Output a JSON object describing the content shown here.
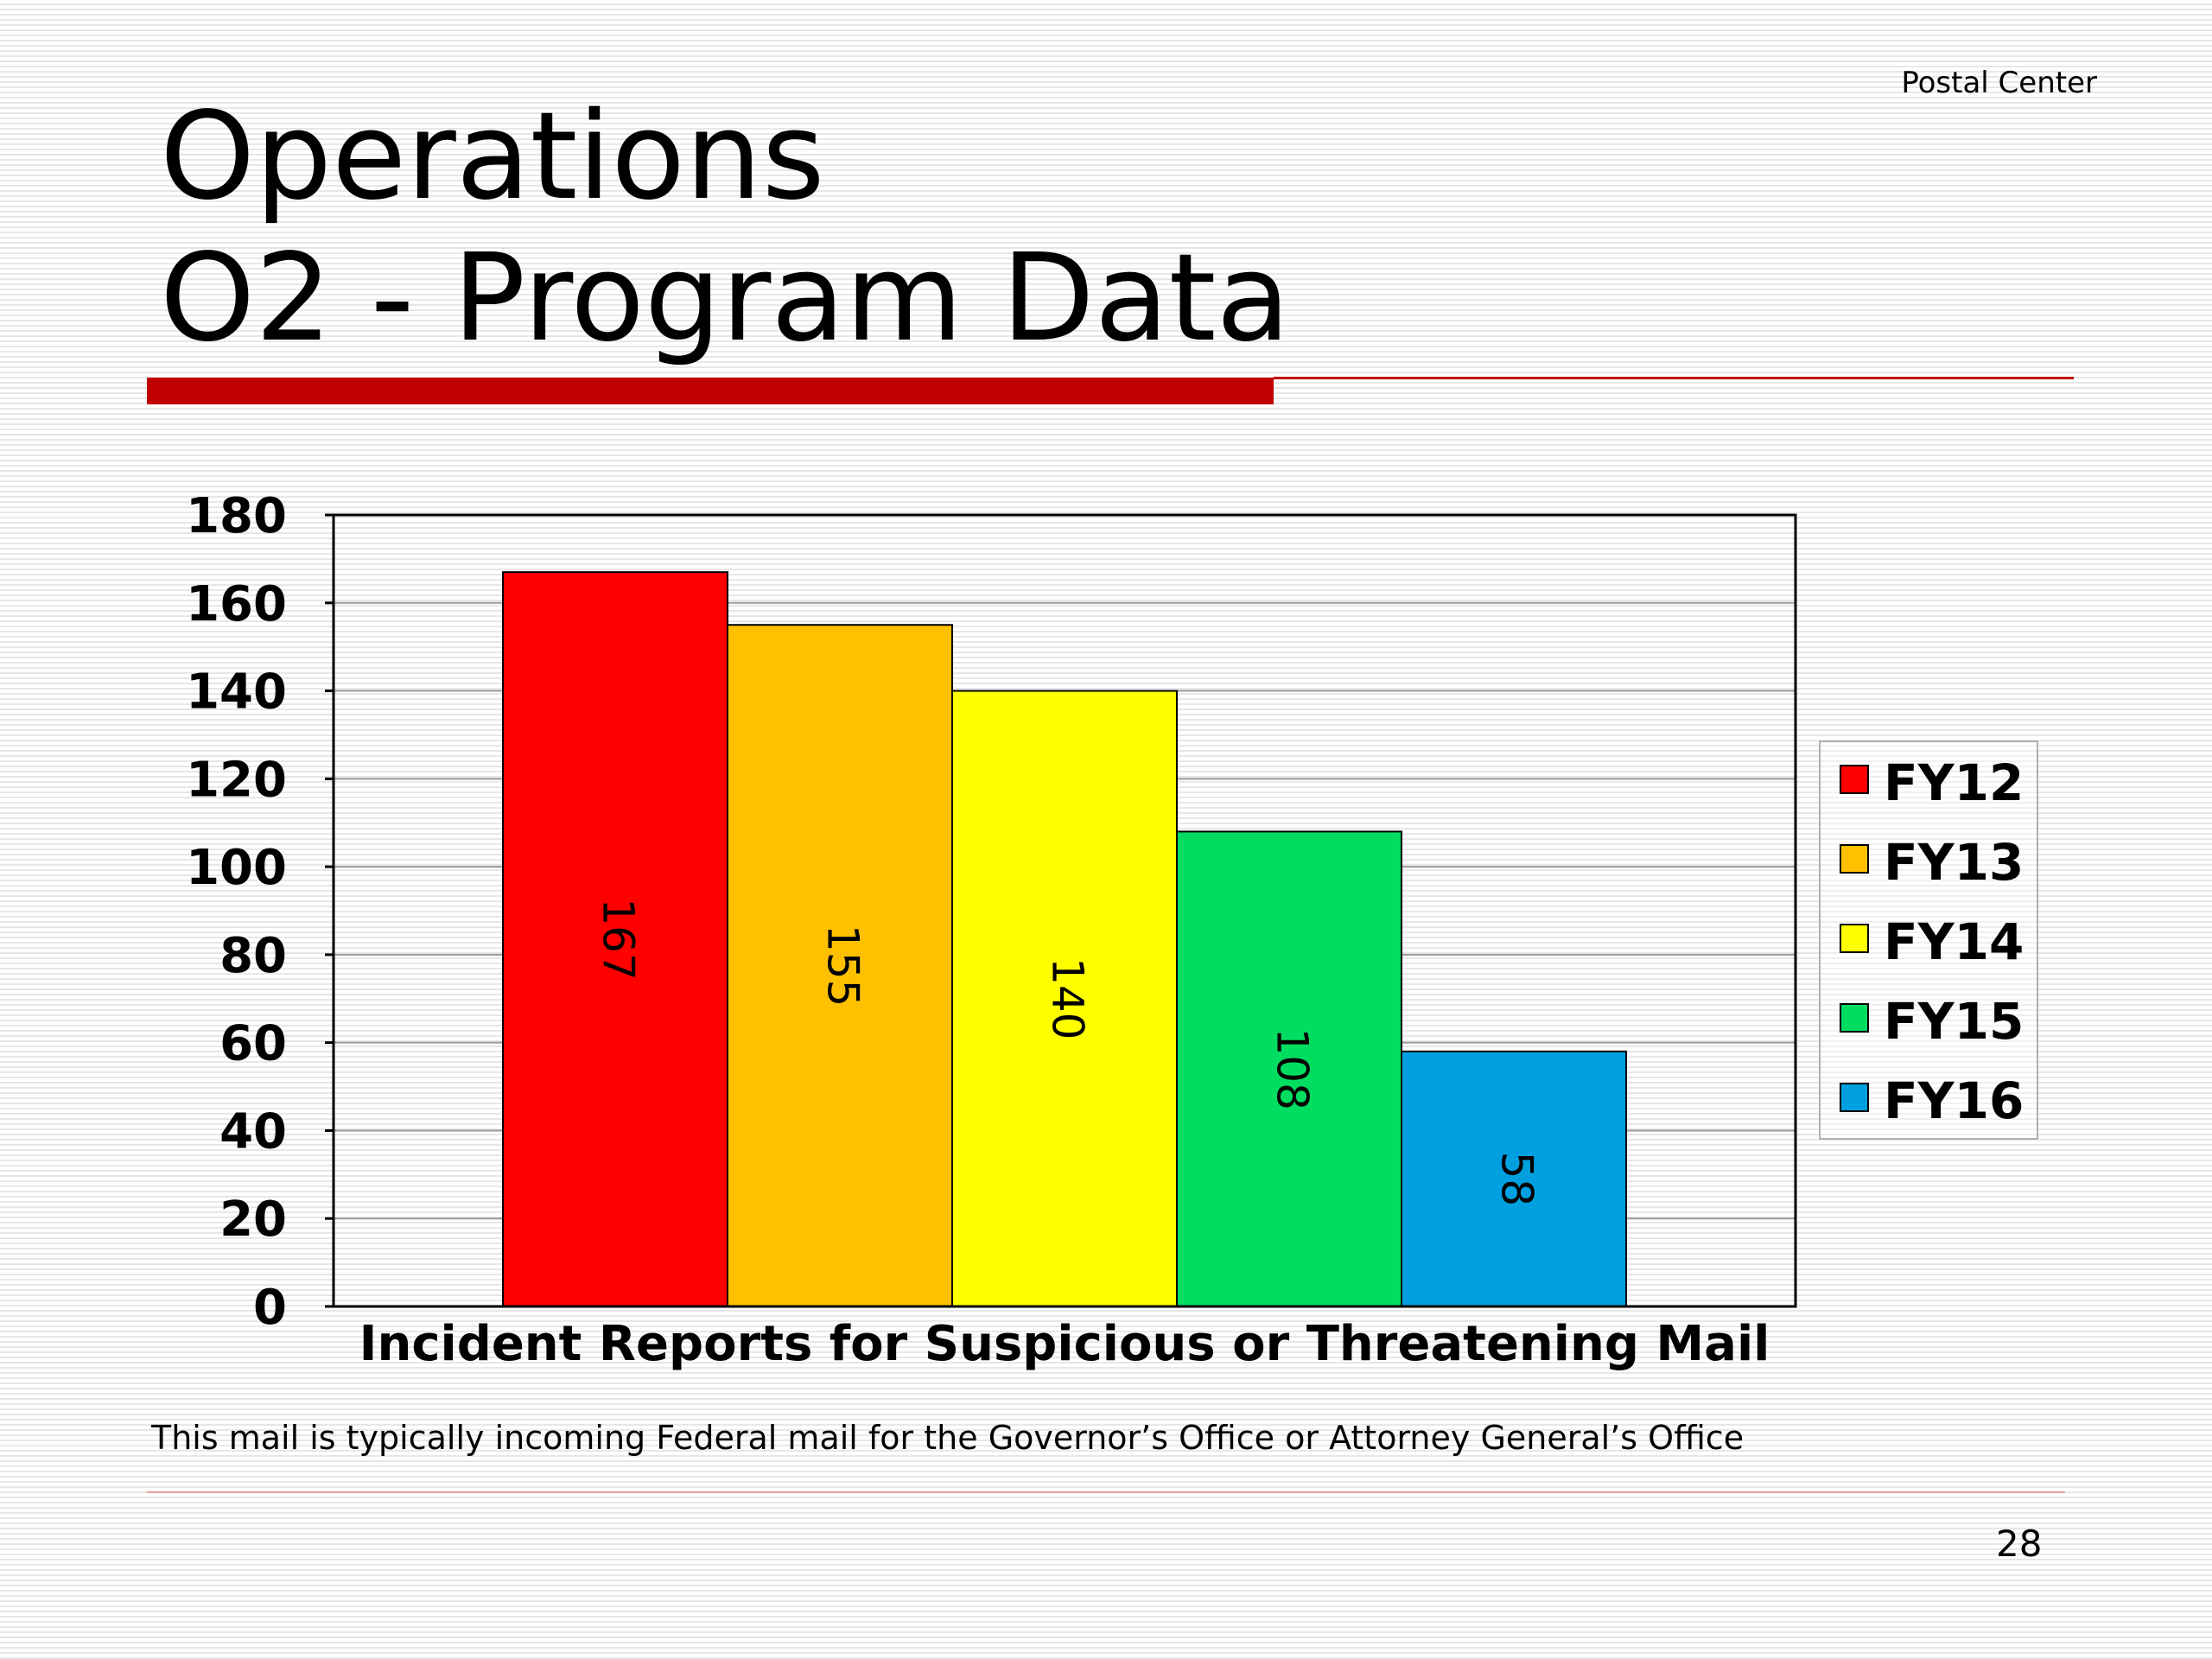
{
  "header": {
    "label": "Postal Center"
  },
  "slide": {
    "title_line1": "Operations",
    "title_line2": "O2 - Program Data",
    "footnote": "This mail is typically incoming Federal mail for the Governor’s Office or Attorney General’s Office",
    "page_number": "28"
  },
  "colors": {
    "title_rule": "#c00000",
    "fy12": "#ff0000",
    "fy13": "#ffc000",
    "fy14": "#ffff00",
    "fy15": "#00dd60",
    "fy16": "#00a0e0"
  },
  "chart_data": {
    "type": "bar",
    "title": "",
    "xlabel": "Incident Reports for Suspicious or Threatening Mail",
    "ylabel": "",
    "ylim": [
      0,
      180
    ],
    "yticks": [
      0,
      20,
      40,
      60,
      80,
      100,
      120,
      140,
      160,
      180
    ],
    "grid": true,
    "legend_position": "right",
    "series": [
      {
        "name": "FY12",
        "values": [
          167
        ],
        "color": "#ff0000"
      },
      {
        "name": "FY13",
        "values": [
          155
        ],
        "color": "#ffc000"
      },
      {
        "name": "FY14",
        "values": [
          140
        ],
        "color": "#ffff00"
      },
      {
        "name": "FY15",
        "values": [
          108
        ],
        "color": "#00dd60"
      },
      {
        "name": "FY16",
        "values": [
          58
        ],
        "color": "#00a0e0"
      }
    ]
  }
}
